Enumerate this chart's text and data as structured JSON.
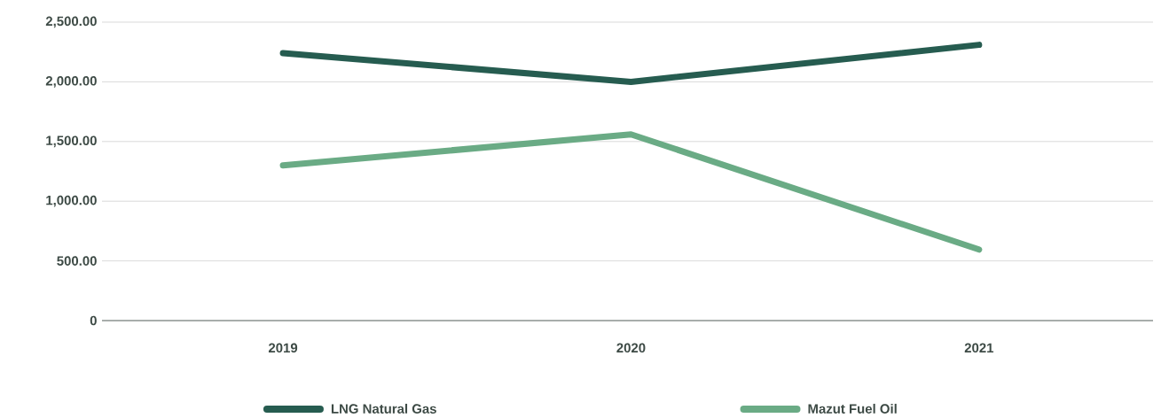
{
  "chart_data": {
    "type": "line",
    "categories": [
      "2019",
      "2020",
      "2021"
    ],
    "series": [
      {
        "name": "LNG Natural Gas",
        "color": "#265c50",
        "values": [
          2240,
          2000,
          2310
        ]
      },
      {
        "name": "Mazut Fuel Oil",
        "color": "#6aab85",
        "values": [
          1300,
          1560,
          595
        ]
      }
    ],
    "ylim": [
      0,
      2500
    ],
    "yticks": [
      0,
      {
        "value": 500,
        "label": "500.00"
      },
      {
        "value": 1000,
        "label": "1,000.00"
      },
      {
        "value": 1500,
        "label": "1,500.00"
      },
      {
        "value": 2000,
        "label": "2,000.00"
      },
      {
        "value": 2500,
        "label": "2,500.00"
      }
    ],
    "grid": "y",
    "legend": "bottom",
    "marker": "none",
    "line_style": "solid"
  }
}
